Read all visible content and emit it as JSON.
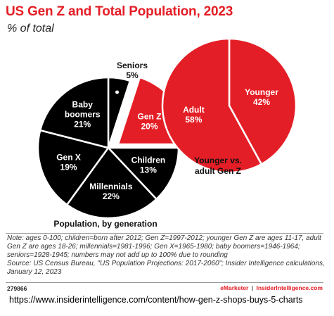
{
  "title": "US Gen Z and Total Population, 2023",
  "subtitle": "% of total",
  "chart_data": [
    {
      "type": "pie",
      "caption": "Population, by generation",
      "slices": [
        {
          "name": "Seniors",
          "value": 5,
          "label": "5%",
          "color": "#000000"
        },
        {
          "name": "Gen Z",
          "value": 20,
          "label": "20%",
          "color": "#e41e26"
        },
        {
          "name": "Children",
          "value": 13,
          "label": "13%",
          "color": "#000000"
        },
        {
          "name": "Millennials",
          "value": 22,
          "label": "22%",
          "color": "#000000"
        },
        {
          "name": "Gen X",
          "value": 19,
          "label": "19%",
          "color": "#000000"
        },
        {
          "name": "Baby boomers",
          "value": 21,
          "label": "21%",
          "color": "#000000"
        }
      ]
    },
    {
      "type": "pie",
      "caption": "Younger vs. adult Gen Z",
      "slices": [
        {
          "name": "Younger",
          "value": 42,
          "label": "42%",
          "color": "#e41e26"
        },
        {
          "name": "Adult",
          "value": 58,
          "label": "58%",
          "color": "#e41e26"
        }
      ]
    }
  ],
  "note": "Note: ages 0-100; children=born after 2012; Gen Z=1997-2012; younger Gen Z are ages 11-17, adult Gen Z are ages 18-26; millennials=1981-1996; Gen X=1965-1980; baby boomers=1946-1964; seniors=1928-1945; numbers may not add up to 100% due to rounding",
  "source": "Source: US Census Bureau, \"US Population Projections: 2017-2060\"; Insider Intelligence calculations, January 12, 2023",
  "chart_id": "279866",
  "brand": {
    "emarketer": "eMarketer",
    "separator": "|",
    "insider": "InsiderIntelligence.com"
  },
  "url": "https://www.insiderintelligence.com/content/how-gen-z-shops-buys-5-charts"
}
